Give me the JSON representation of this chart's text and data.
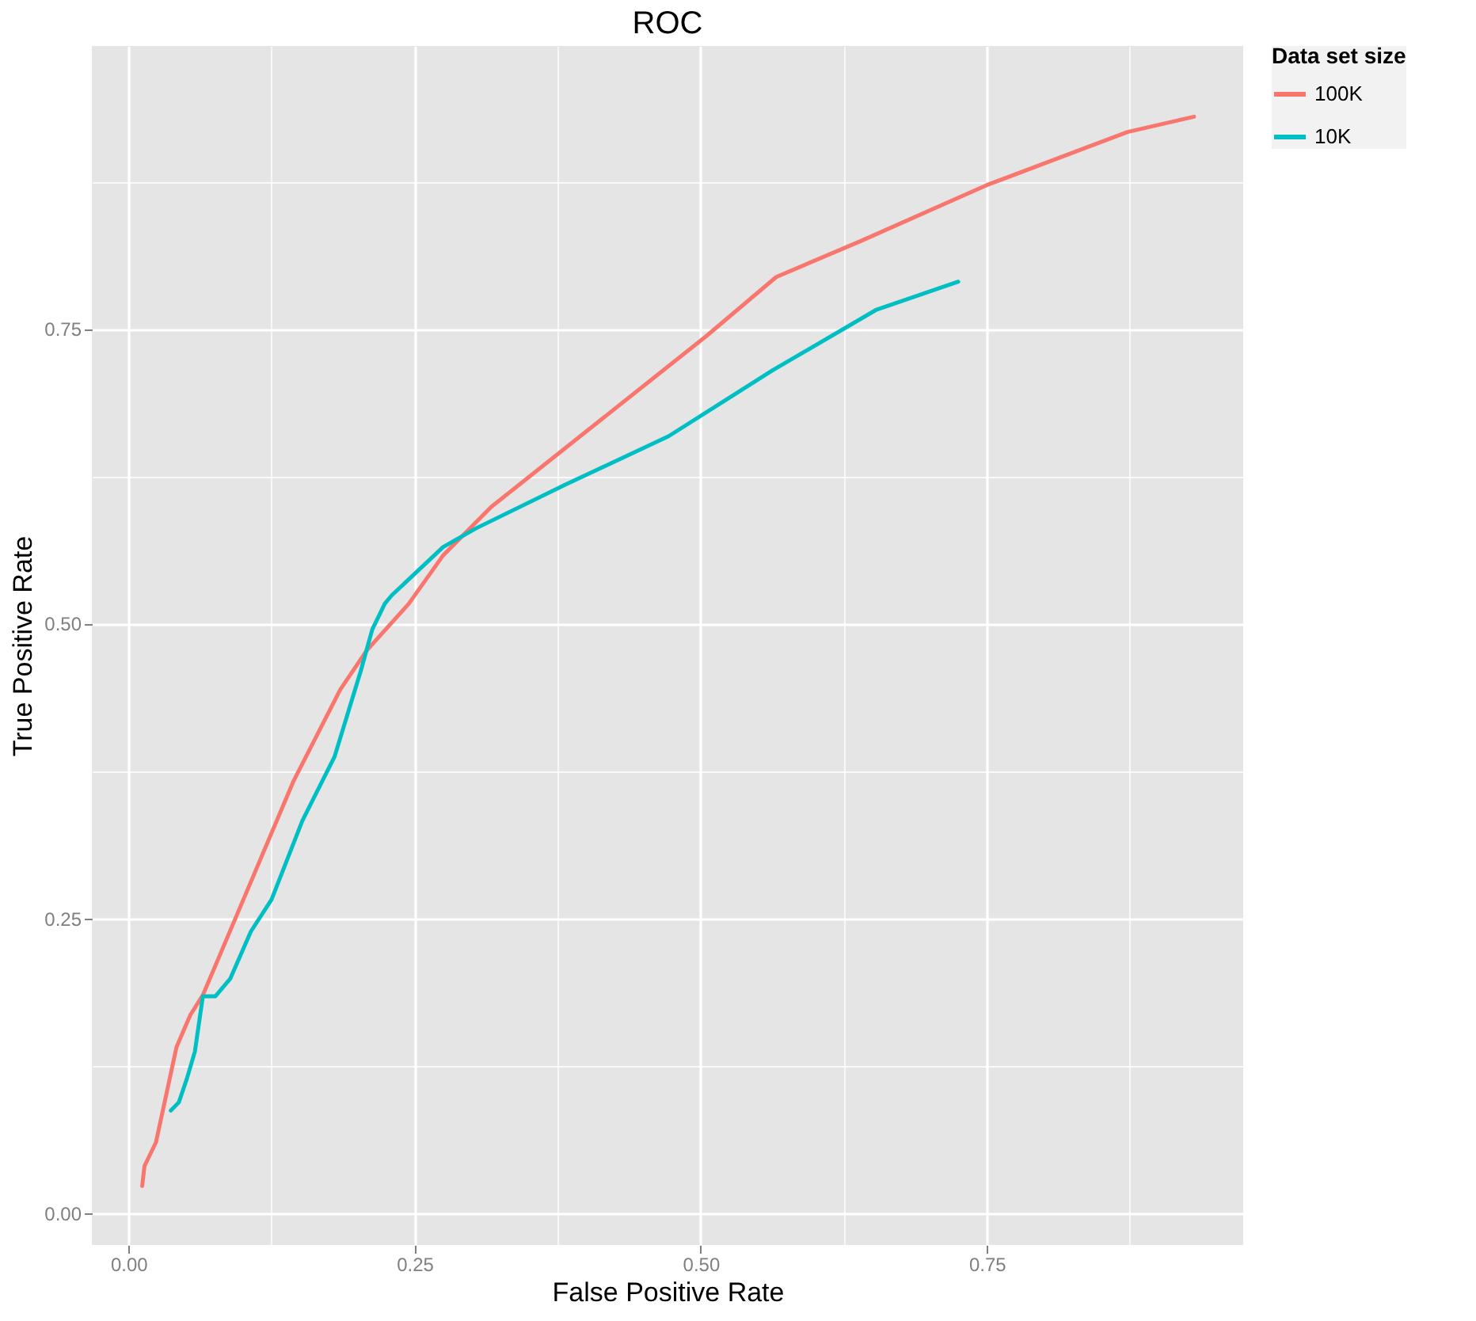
{
  "chart_data": {
    "type": "line",
    "title": "ROC",
    "xlabel": "False Positive Rate",
    "ylabel": "True Positive Rate",
    "legend_title": "Data set size",
    "legend": "right",
    "grid": true,
    "xlim": [
      -0.032,
      0.974
    ],
    "ylim": [
      -0.027,
      0.99
    ],
    "xticks": [
      {
        "value": 0,
        "label": "0.00"
      },
      {
        "value": 0.125,
        "label": null
      },
      {
        "value": 0.25,
        "label": "0.25"
      },
      {
        "value": 0.375,
        "label": null
      },
      {
        "value": 0.5,
        "label": "0.50"
      },
      {
        "value": 0.625,
        "label": null
      },
      {
        "value": 0.75,
        "label": "0.75"
      },
      {
        "value": 0.875,
        "label": null
      }
    ],
    "yticks": [
      {
        "value": 0,
        "label": "0.00"
      },
      {
        "value": 0.125,
        "label": null
      },
      {
        "value": 0.25,
        "label": "0.25"
      },
      {
        "value": 0.375,
        "label": null
      },
      {
        "value": 0.5,
        "label": "0.50"
      },
      {
        "value": 0.625,
        "label": null
      },
      {
        "value": 0.75,
        "label": "0.75"
      },
      {
        "value": 0.875,
        "label": null
      }
    ],
    "line_style": "solid",
    "series": [
      {
        "name": "100K",
        "color": "#f8766d",
        "x": [
          0.012,
          0.014,
          0.024,
          0.042,
          0.054,
          0.065,
          0.093,
          0.144,
          0.185,
          0.208,
          0.245,
          0.275,
          0.317,
          0.505,
          0.566,
          0.641,
          0.75,
          0.873,
          0.931
        ],
        "values": [
          0.023,
          0.04,
          0.06,
          0.141,
          0.168,
          0.185,
          0.249,
          0.366,
          0.444,
          0.477,
          0.517,
          0.558,
          0.599,
          0.744,
          0.794,
          0.825,
          0.872,
          0.917,
          0.93
        ]
      },
      {
        "name": "10K",
        "color": "#00bfc4",
        "x": [
          0.037,
          0.044,
          0.051,
          0.058,
          0.065,
          0.076,
          0.089,
          0.107,
          0.125,
          0.152,
          0.18,
          0.203,
          0.213,
          0.224,
          0.23,
          0.275,
          0.304,
          0.382,
          0.472,
          0.563,
          0.653,
          0.725
        ],
        "values": [
          0.087,
          0.094,
          0.114,
          0.137,
          0.184,
          0.184,
          0.199,
          0.239,
          0.266,
          0.333,
          0.387,
          0.46,
          0.495,
          0.517,
          0.524,
          0.565,
          0.581,
          0.618,
          0.659,
          0.715,
          0.766,
          0.79
        ]
      }
    ]
  }
}
